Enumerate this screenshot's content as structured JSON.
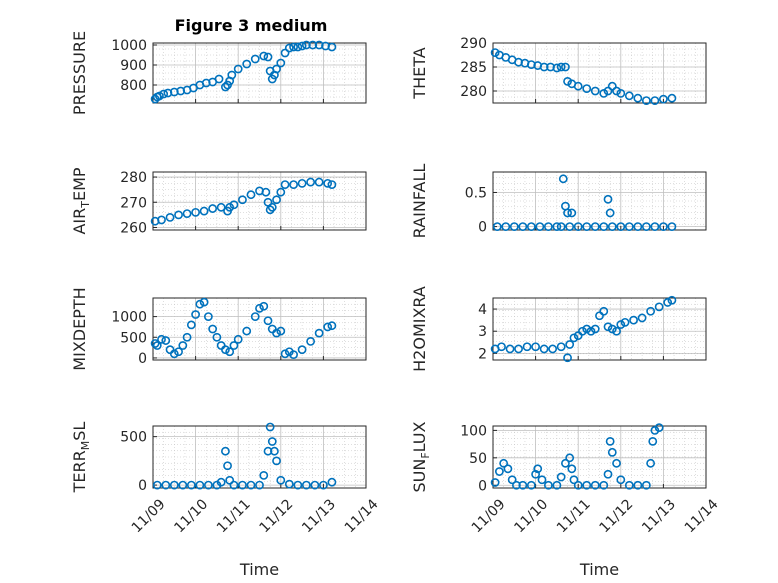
{
  "figure": {
    "title": "Figure 3 medium",
    "xlabel": "Time"
  },
  "colors": {
    "marker": "#0072bd",
    "axes": "#262626",
    "grid": "#bfbfbf"
  },
  "chart_data": [
    {
      "type": "scatter",
      "id": "pressure",
      "ylabel": "PRESSURE",
      "ylim": [
        710,
        1010
      ],
      "yticks": [
        800,
        900,
        1000
      ],
      "xlim": [
        0,
        5
      ],
      "grid": true,
      "x": [
        0.05,
        0.1,
        0.15,
        0.25,
        0.35,
        0.5,
        0.65,
        0.8,
        0.95,
        1.1,
        1.25,
        1.4,
        1.55,
        1.7,
        1.75,
        1.8,
        1.85,
        2.0,
        2.2,
        2.4,
        2.6,
        2.7,
        2.75,
        2.8,
        2.85,
        2.9,
        3.0,
        3.1,
        3.2,
        3.3,
        3.4,
        3.5,
        3.6,
        3.75,
        3.9,
        4.05,
        4.2
      ],
      "y": [
        730,
        740,
        745,
        755,
        760,
        765,
        770,
        775,
        785,
        800,
        810,
        815,
        830,
        790,
        800,
        820,
        850,
        880,
        905,
        930,
        945,
        940,
        870,
        830,
        850,
        880,
        910,
        960,
        985,
        990,
        990,
        995,
        1000,
        1000,
        1000,
        995,
        990
      ]
    },
    {
      "type": "scatter",
      "id": "theta",
      "ylabel": "THETA",
      "ylim": [
        277.5,
        290
      ],
      "yticks": [
        280,
        285,
        290
      ],
      "xlim": [
        0,
        5
      ],
      "grid": true,
      "x": [
        0.05,
        0.15,
        0.3,
        0.45,
        0.6,
        0.75,
        0.9,
        1.05,
        1.2,
        1.35,
        1.5,
        1.6,
        1.7,
        1.75,
        1.85,
        2.0,
        2.2,
        2.4,
        2.6,
        2.7,
        2.8,
        2.9,
        3.0,
        3.2,
        3.4,
        3.6,
        3.8,
        4.0,
        4.2
      ],
      "y": [
        288,
        287.5,
        287,
        286.5,
        286,
        285.8,
        285.5,
        285.3,
        285,
        285,
        284.8,
        285,
        285,
        282,
        281.5,
        281,
        280.5,
        280,
        279.5,
        280,
        281,
        280,
        279.5,
        279,
        278.5,
        278,
        278,
        278.3,
        278.5
      ]
    },
    {
      "type": "scatter",
      "id": "air_temp",
      "ylabel": "AIR_TEMP",
      "ylim": [
        259,
        282
      ],
      "yticks": [
        260,
        270,
        280
      ],
      "xlim": [
        0,
        5
      ],
      "grid": true,
      "x": [
        0.05,
        0.2,
        0.4,
        0.6,
        0.8,
        1.0,
        1.2,
        1.4,
        1.6,
        1.75,
        1.8,
        1.9,
        2.1,
        2.3,
        2.5,
        2.65,
        2.7,
        2.75,
        2.8,
        2.9,
        3.0,
        3.1,
        3.3,
        3.5,
        3.7,
        3.9,
        4.1,
        4.2
      ],
      "y": [
        262.5,
        263,
        264,
        265,
        265.5,
        266,
        266.5,
        267.5,
        268,
        266.5,
        268,
        269,
        271,
        273,
        274.5,
        274,
        270,
        267,
        268,
        271,
        274,
        277,
        277,
        277.5,
        278,
        278,
        277.5,
        277
      ]
    },
    {
      "type": "scatter",
      "id": "rainfall",
      "ylabel": "RAINFALL",
      "ylim": [
        -0.05,
        0.8
      ],
      "yticks": [
        0,
        0.5
      ],
      "xlim": [
        0,
        5
      ],
      "grid": true,
      "x": [
        0.1,
        0.3,
        0.5,
        0.7,
        0.9,
        1.1,
        1.3,
        1.5,
        1.6,
        1.65,
        1.7,
        1.75,
        1.8,
        1.85,
        2.0,
        2.2,
        2.4,
        2.6,
        2.7,
        2.75,
        2.8,
        3.0,
        3.2,
        3.4,
        3.6,
        3.8,
        4.0,
        4.2
      ],
      "y": [
        0,
        0,
        0,
        0,
        0,
        0,
        0,
        0,
        0,
        0.7,
        0.3,
        0.2,
        0,
        0.2,
        0,
        0,
        0,
        0,
        0.4,
        0.2,
        0,
        0,
        0,
        0,
        0,
        0,
        0,
        0
      ]
    },
    {
      "type": "scatter",
      "id": "mixdepth",
      "ylabel": "MIXDEPTH",
      "ylim": [
        -50,
        1450
      ],
      "yticks": [
        0,
        500,
        1000
      ],
      "xlim": [
        0,
        5
      ],
      "grid": true,
      "x": [
        0.05,
        0.1,
        0.2,
        0.3,
        0.4,
        0.5,
        0.6,
        0.7,
        0.8,
        0.9,
        1.0,
        1.1,
        1.2,
        1.3,
        1.4,
        1.5,
        1.6,
        1.7,
        1.8,
        1.9,
        2.0,
        2.2,
        2.4,
        2.5,
        2.6,
        2.7,
        2.8,
        2.9,
        3.0,
        3.1,
        3.2,
        3.3,
        3.5,
        3.7,
        3.9,
        4.1,
        4.2
      ],
      "y": [
        350,
        300,
        450,
        420,
        200,
        100,
        150,
        300,
        500,
        800,
        1050,
        1300,
        1350,
        1000,
        700,
        500,
        300,
        200,
        150,
        300,
        450,
        650,
        1000,
        1200,
        1250,
        900,
        700,
        600,
        650,
        100,
        150,
        80,
        200,
        400,
        600,
        750,
        780
      ]
    },
    {
      "type": "scatter",
      "id": "h2omixra",
      "ylabel": "H2OMIXRA",
      "ylim": [
        1.7,
        4.5
      ],
      "yticks": [
        2,
        3,
        4
      ],
      "xlim": [
        0,
        5
      ],
      "grid": true,
      "x": [
        0.05,
        0.2,
        0.4,
        0.6,
        0.8,
        1.0,
        1.2,
        1.4,
        1.6,
        1.75,
        1.8,
        1.9,
        2.0,
        2.1,
        2.2,
        2.3,
        2.4,
        2.5,
        2.6,
        2.7,
        2.8,
        2.9,
        3.0,
        3.1,
        3.3,
        3.5,
        3.7,
        3.9,
        4.1,
        4.2
      ],
      "y": [
        2.2,
        2.3,
        2.2,
        2.2,
        2.3,
        2.3,
        2.2,
        2.2,
        2.3,
        1.8,
        2.4,
        2.7,
        2.8,
        3.0,
        3.1,
        3.0,
        3.1,
        3.7,
        3.9,
        3.2,
        3.1,
        3.0,
        3.3,
        3.4,
        3.5,
        3.6,
        3.9,
        4.1,
        4.3,
        4.4
      ]
    },
    {
      "type": "scatter",
      "id": "terr_msl",
      "ylabel": "TERR_MSL",
      "ylim": [
        -30,
        610
      ],
      "yticks": [
        0,
        500
      ],
      "xlim": [
        0,
        5
      ],
      "grid": true,
      "x": [
        0.1,
        0.3,
        0.5,
        0.7,
        0.9,
        1.1,
        1.3,
        1.5,
        1.6,
        1.7,
        1.75,
        1.8,
        1.9,
        2.1,
        2.3,
        2.5,
        2.6,
        2.7,
        2.75,
        2.8,
        2.85,
        2.9,
        3.0,
        3.2,
        3.4,
        3.6,
        3.8,
        4.0,
        4.2
      ],
      "y": [
        0,
        0,
        0,
        0,
        0,
        0,
        0,
        0,
        30,
        350,
        200,
        50,
        0,
        0,
        0,
        0,
        100,
        350,
        600,
        450,
        350,
        250,
        50,
        10,
        0,
        0,
        0,
        0,
        30
      ]
    },
    {
      "type": "scatter",
      "id": "sun_flux",
      "ylabel": "SUN_FLUX",
      "ylim": [
        -5,
        108
      ],
      "yticks": [
        0,
        50,
        100
      ],
      "xlim": [
        0,
        5
      ],
      "grid": true,
      "x": [
        0.05,
        0.15,
        0.25,
        0.35,
        0.45,
        0.55,
        0.7,
        0.9,
        1.0,
        1.05,
        1.15,
        1.3,
        1.5,
        1.6,
        1.7,
        1.8,
        1.85,
        1.9,
        2.0,
        2.2,
        2.4,
        2.6,
        2.7,
        2.75,
        2.8,
        2.9,
        3.0,
        3.2,
        3.4,
        3.6,
        3.7,
        3.75,
        3.8,
        3.9
      ],
      "y": [
        5,
        25,
        40,
        30,
        10,
        0,
        0,
        0,
        20,
        30,
        10,
        0,
        0,
        15,
        40,
        50,
        30,
        10,
        0,
        0,
        0,
        0,
        20,
        80,
        60,
        40,
        10,
        0,
        0,
        0,
        40,
        80,
        100,
        105
      ]
    }
  ],
  "xaxis": {
    "tick_labels": [
      "11/09",
      "11/10",
      "11/11",
      "11/12",
      "11/13",
      "11/14"
    ]
  }
}
